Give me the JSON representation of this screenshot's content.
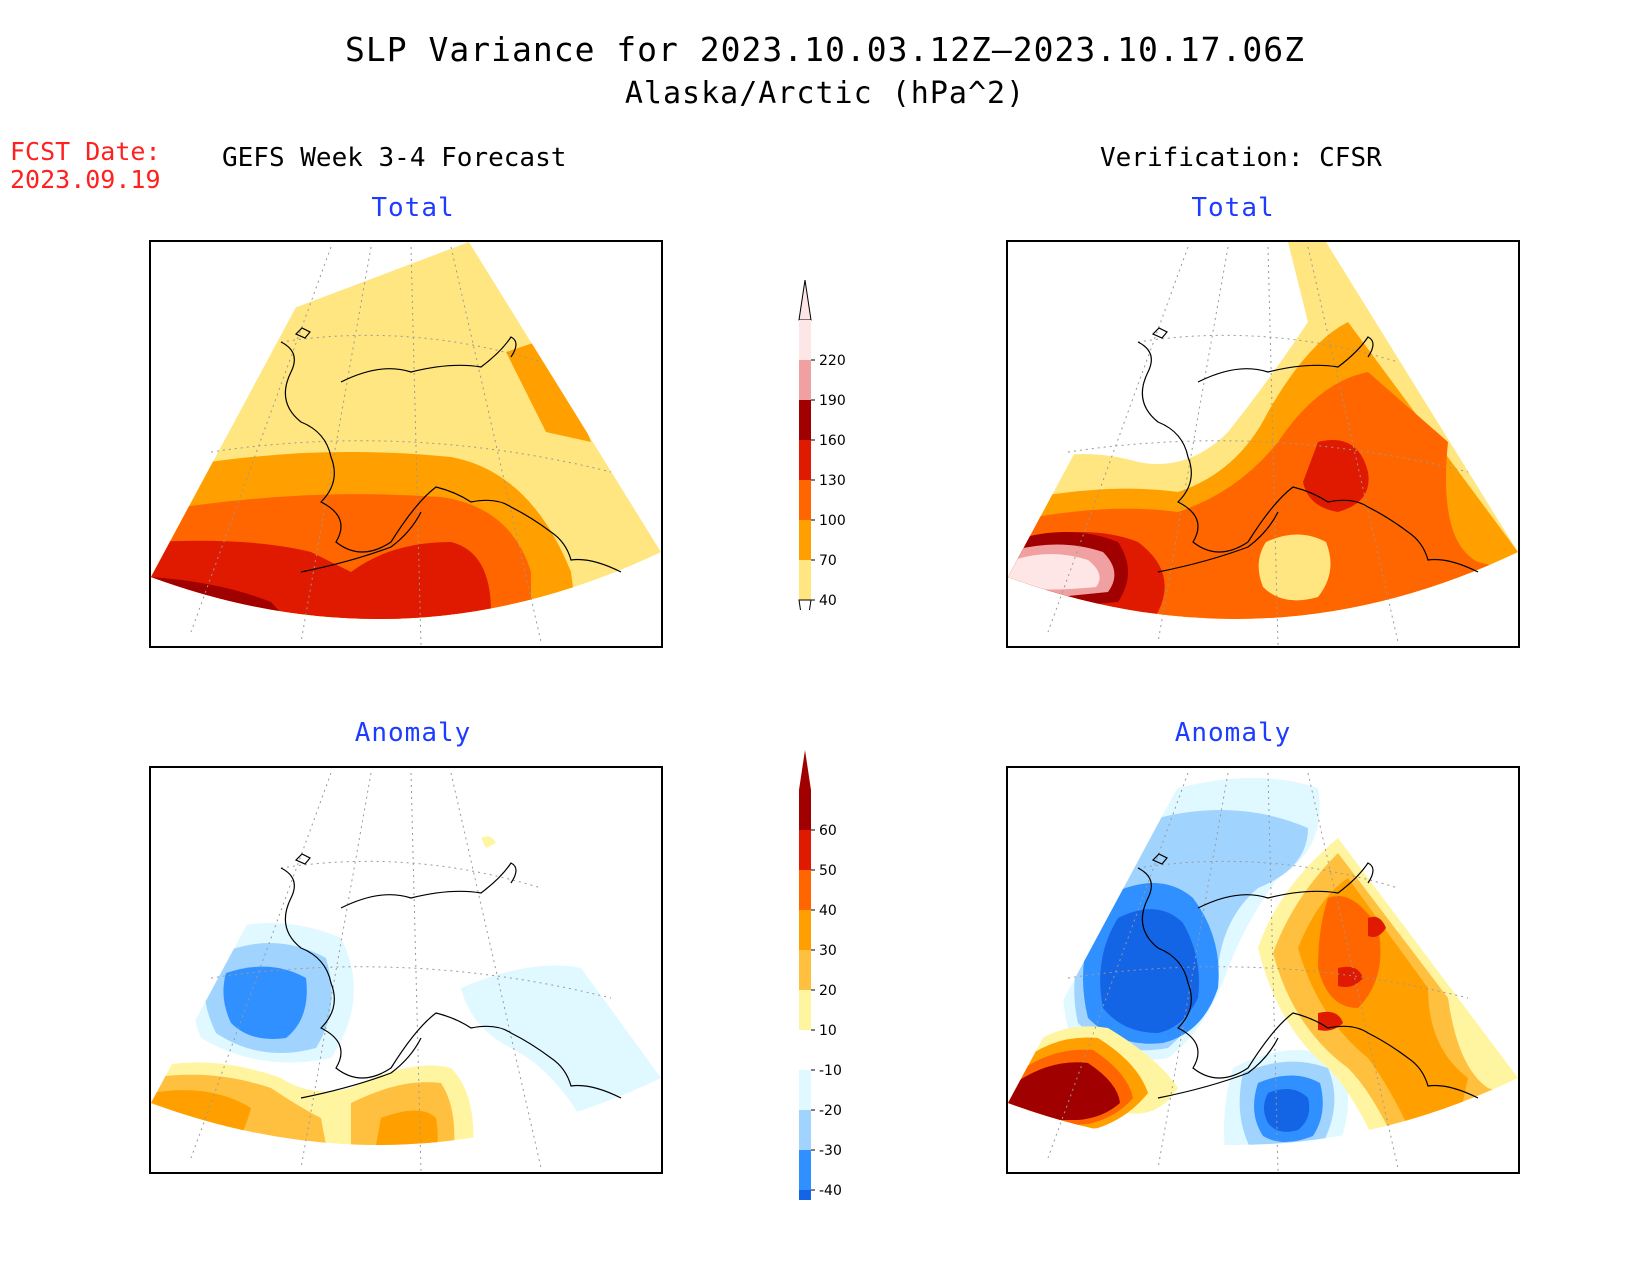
{
  "title": {
    "line1": "SLP Variance for 2023.10.03.12Z—2023.10.17.06Z",
    "line2": "Alaska/Arctic (hPa^2)"
  },
  "fcst": {
    "label": "FCST Date:",
    "date": "2023.09.19"
  },
  "columns": {
    "left": "GEFS Week 3-4 Forecast",
    "right": "Verification: CFSR"
  },
  "panels": {
    "top_left": "Total",
    "top_right": "Total",
    "bottom_left": "Anomaly",
    "bottom_right": "Anomaly"
  },
  "colorbar_total": {
    "labels": [
      "220",
      "190",
      "160",
      "130",
      "100",
      "70",
      "40"
    ],
    "colors": [
      "#ffe6e6",
      "#f0a0a0",
      "#a00000",
      "#e01a00",
      "#ff6600",
      "#ffa000",
      "#ffe680"
    ]
  },
  "colorbar_anomaly": {
    "labels": [
      "60",
      "50",
      "40",
      "30",
      "20",
      "10",
      "-10",
      "-20",
      "-30",
      "-40"
    ],
    "colors": [
      "#a00000",
      "#e01a00",
      "#ff6600",
      "#ffa000",
      "#ffc040",
      "#fff5a0",
      "#ffffff",
      "#e0f8ff",
      "#a0d4ff",
      "#3090ff",
      "#1464e6"
    ]
  },
  "palette": {
    "yellow": "#ffe680",
    "lightorange": "#ffa000",
    "orange": "#ff6600",
    "red": "#e01a00",
    "darkred": "#a00000",
    "pink": "#f0a0a0",
    "lightpink": "#ffe6e6",
    "lightyellow": "#fff5a0",
    "paleblue": "#e0f8ff",
    "lightblue": "#a0d4ff",
    "blue": "#3090ff",
    "darkblue": "#1464e6"
  }
}
